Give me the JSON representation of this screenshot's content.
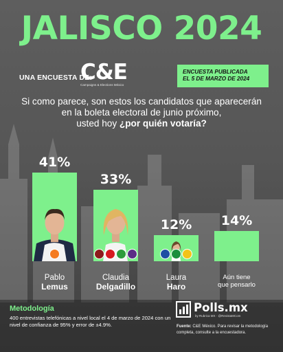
{
  "title": "JALISCO 2024",
  "survey_label": "UNA ENCUESTA DE:",
  "logo": {
    "text": "C&E",
    "subtext": "Campaigns & Elections México"
  },
  "publication": {
    "line1": "ENCUESTA PUBLICADA",
    "line2": "EL 5 DE MARZO DE 2024"
  },
  "question": {
    "line1": "Si como parece, son estos los candidatos que aparecerán",
    "line2": "en la boleta electoral de junio próximo,",
    "line3_plain": "usted hoy ",
    "line3_bold": "¿por quién votaría?"
  },
  "chart_data": {
    "type": "bar",
    "categories": [
      "Pablo Lemus",
      "Claudia Delgadillo",
      "Laura Haro",
      "Aún tiene que pensarlo"
    ],
    "values": [
      41,
      33,
      12,
      14
    ],
    "value_labels": [
      "41%",
      "33%",
      "12%",
      "14%"
    ],
    "candidates": [
      {
        "first": "Pablo",
        "last": "Lemus",
        "parties": [
          "MC"
        ]
      },
      {
        "first": "Claudia",
        "last": "Delgadillo",
        "parties": [
          "MORENA",
          "PT",
          "PVEM",
          "HAGAMOS"
        ]
      },
      {
        "first": "Laura",
        "last": "Haro",
        "parties": [
          "PAN",
          "PRI",
          "PRD"
        ]
      },
      {
        "first": "Aún tiene",
        "last": "que pensarlo",
        "parties": []
      }
    ],
    "bar_color": "#7ef08c"
  },
  "methodology": {
    "title": "Metodología",
    "text": "400 entrevistas telefónicas a nivel local el 4 de marzo de 2024 con un nivel de confianza de 95% y error de ±4.9%."
  },
  "brand": {
    "name": "Polls.mx",
    "sub": "by Rubrica MX · @RevistaMCom"
  },
  "source": {
    "label": "Fuente:",
    "text": "C&E México. Para revisar la metodología completa, consulte a la encuestadora."
  },
  "colors": {
    "accent": "#7ef08c",
    "background": "#5a5a5a"
  }
}
